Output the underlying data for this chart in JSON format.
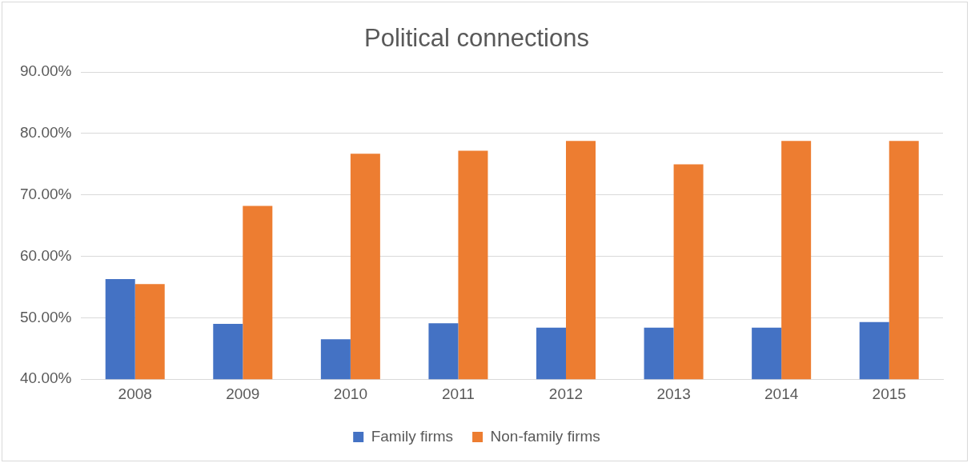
{
  "chart_data": {
    "type": "bar",
    "title": "Political connections",
    "categories": [
      "2008",
      "2009",
      "2010",
      "2011",
      "2012",
      "2013",
      "2014",
      "2015"
    ],
    "series": [
      {
        "name": "Family firms",
        "color": "#4472c4",
        "values": [
          56.3,
          49.0,
          46.5,
          49.1,
          48.4,
          48.4,
          48.4,
          49.3
        ]
      },
      {
        "name": "Non-family firms",
        "color": "#ed7d31",
        "values": [
          55.5,
          68.2,
          76.7,
          77.2,
          78.8,
          75.0,
          78.8,
          78.8
        ]
      }
    ],
    "ylim": [
      40,
      90
    ],
    "yticks": [
      {
        "value": 40,
        "label": "40.00%"
      },
      {
        "value": 50,
        "label": "50.00%"
      },
      {
        "value": 60,
        "label": "60.00%"
      },
      {
        "value": 70,
        "label": "70.00%"
      },
      {
        "value": 80,
        "label": "80.00%"
      },
      {
        "value": 90,
        "label": "90.00%"
      }
    ],
    "grid": "y",
    "legend": "bottom"
  }
}
